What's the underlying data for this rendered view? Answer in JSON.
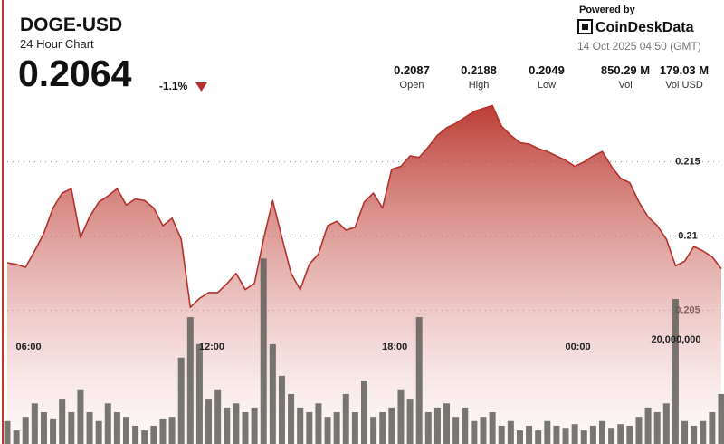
{
  "chart_data": {
    "type": "line",
    "title": "DOGE-USD",
    "subtitle": "24 Hour Chart",
    "price": "0.2064",
    "change": "-1.1%",
    "powered_by": "Powered by",
    "brand": "CoinDeskData",
    "timestamp": "14 Oct 2025 04:50 (GMT)",
    "stats": [
      {
        "value": "0.2087",
        "label": "Open"
      },
      {
        "value": "0.2188",
        "label": "High"
      },
      {
        "value": "0.2049",
        "label": "Low"
      },
      {
        "value": "850.29 M",
        "label": "Vol"
      },
      {
        "value": "179.03 M",
        "label": "Vol USD"
      }
    ],
    "x": [
      5.3,
      5.6,
      5.9,
      6.2,
      6.5,
      6.8,
      7.1,
      7.4,
      7.7,
      8.0,
      8.3,
      8.6,
      8.9,
      9.2,
      9.5,
      9.8,
      10.1,
      10.4,
      10.7,
      11.0,
      11.3,
      11.6,
      11.9,
      12.2,
      12.5,
      12.8,
      13.1,
      13.4,
      13.7,
      14.0,
      14.3,
      14.6,
      14.9,
      15.2,
      15.5,
      15.8,
      16.1,
      16.4,
      16.7,
      17.0,
      17.3,
      17.6,
      17.9,
      18.2,
      18.5,
      18.8,
      19.1,
      19.4,
      19.7,
      20.0,
      20.3,
      20.6,
      20.9,
      21.2,
      21.5,
      21.8,
      22.1,
      22.4,
      22.7,
      23.0,
      23.3,
      23.6,
      23.9,
      24.2,
      24.5,
      24.8,
      25.1,
      25.4,
      25.7,
      26.0,
      26.3,
      26.6,
      26.9,
      27.2,
      27.5,
      27.8,
      28.1,
      28.4,
      28.7
    ],
    "xlim": [
      5.3,
      28.7
    ],
    "xticks": [
      {
        "value": 6,
        "label": "06:00"
      },
      {
        "value": 12,
        "label": "12:00"
      },
      {
        "value": 18,
        "label": "18:00"
      },
      {
        "value": 24,
        "label": "00:00"
      }
    ],
    "ylim": [
      0.196,
      0.2198
    ],
    "yticks": [
      0.205,
      0.21,
      0.215
    ],
    "y2lim": [
      0,
      68000000
    ],
    "y2ticks": [
      {
        "value": 20000000,
        "label": "20,000,000"
      }
    ],
    "grid": true,
    "series": [
      {
        "type": "line",
        "color": "#b3312a",
        "values": [
          0.2082,
          0.2081,
          0.2079,
          0.209,
          0.2102,
          0.2119,
          0.2129,
          0.2132,
          0.2099,
          0.2113,
          0.2123,
          0.2127,
          0.2132,
          0.2121,
          0.2125,
          0.2124,
          0.2119,
          0.2107,
          0.2112,
          0.2098,
          0.2052,
          0.2058,
          0.2062,
          0.2062,
          0.2068,
          0.2075,
          0.2064,
          0.2068,
          0.2098,
          0.2124,
          0.2099,
          0.2075,
          0.2064,
          0.2081,
          0.2088,
          0.2107,
          0.211,
          0.2104,
          0.2106,
          0.2123,
          0.2129,
          0.2119,
          0.2145,
          0.2147,
          0.2154,
          0.2153,
          0.216,
          0.2168,
          0.2173,
          0.2176,
          0.218,
          0.2184,
          0.2186,
          0.2188,
          0.2174,
          0.2168,
          0.2163,
          0.2162,
          0.2159,
          0.2157,
          0.2154,
          0.2151,
          0.2147,
          0.215,
          0.2154,
          0.2157,
          0.2147,
          0.2139,
          0.2136,
          0.2123,
          0.2113,
          0.2107,
          0.2098,
          0.208,
          0.2083,
          0.2093,
          0.209,
          0.2086,
          0.2078
        ]
      },
      {
        "type": "bar",
        "axis": "y2",
        "color": "#5f5f58",
        "values": [
          4400000,
          2600000,
          5200000,
          7800000,
          6100000,
          4900000,
          8700000,
          6100000,
          10500000,
          6100000,
          4400000,
          7800000,
          6100000,
          5200000,
          3500000,
          2600000,
          3500000,
          4900000,
          5200000,
          16600000,
          24400000,
          19200000,
          8700000,
          10500000,
          7000000,
          7800000,
          6100000,
          7000000,
          35700000,
          19200000,
          13100000,
          9600000,
          7000000,
          6100000,
          7800000,
          5200000,
          6100000,
          9600000,
          6100000,
          12200000,
          5200000,
          6100000,
          7000000,
          10500000,
          8700000,
          24400000,
          6100000,
          7000000,
          7800000,
          5200000,
          7000000,
          4400000,
          5200000,
          6100000,
          3500000,
          4400000,
          2600000,
          3500000,
          2600000,
          4400000,
          3500000,
          3100000,
          3800000,
          2600000,
          3500000,
          4400000,
          3100000,
          3800000,
          3500000,
          5200000,
          7000000,
          6100000,
          7800000,
          27900000,
          4400000,
          3500000,
          4400000,
          6100000,
          9600000
        ]
      }
    ]
  }
}
